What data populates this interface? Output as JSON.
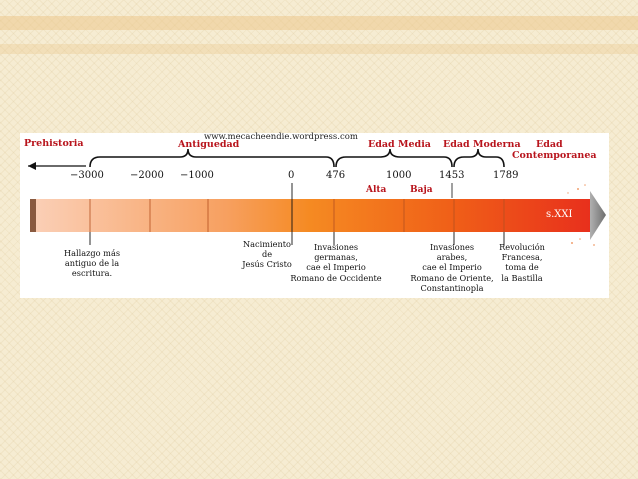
{
  "watermark": "www.mecacheendie.wordpress.com",
  "eras": {
    "prehistoria": "Prehistoria",
    "antiguedad": "Antiguedad",
    "edad_media": "Edad Media",
    "edad_moderna": "Edad Moderna",
    "edad_contemporanea_1": "Edad",
    "edad_contemporanea_2": "Contemporanea"
  },
  "sub_periods": {
    "alta": "Alta",
    "baja": "Baja"
  },
  "years": {
    "y_m3000": "−3000",
    "y_m2000": "−2000",
    "y_m1000": "−1000",
    "y_0": "0",
    "y_476": "476",
    "y_1000": "1000",
    "y_1453": "1453",
    "y_1789": "1789"
  },
  "end_label": "s.XXI",
  "events": {
    "escritura": "Hallazgo más\nantiguo de la\nescritura.",
    "nacimiento": "Nacimiento\nde\nJesús Cristo",
    "invasiones_germanas": "Invasiones\ngermanas,\ncae el Imperio\nRomano de Occidente",
    "invasiones_arabes": "Invasiones\narabes,\ncae el Imperio\nRomano de Oriente,\nConstantinopla",
    "revolucion": "Revolución\nFrancesa,\ntoma de\nla Bastilla"
  },
  "colors": {
    "era_text": "#b8141c",
    "bar_start": "#f9c4a8",
    "bar_mid": "#f48020",
    "bar_end": "#e8281c",
    "arrow_tip": "#8a8a8a"
  }
}
